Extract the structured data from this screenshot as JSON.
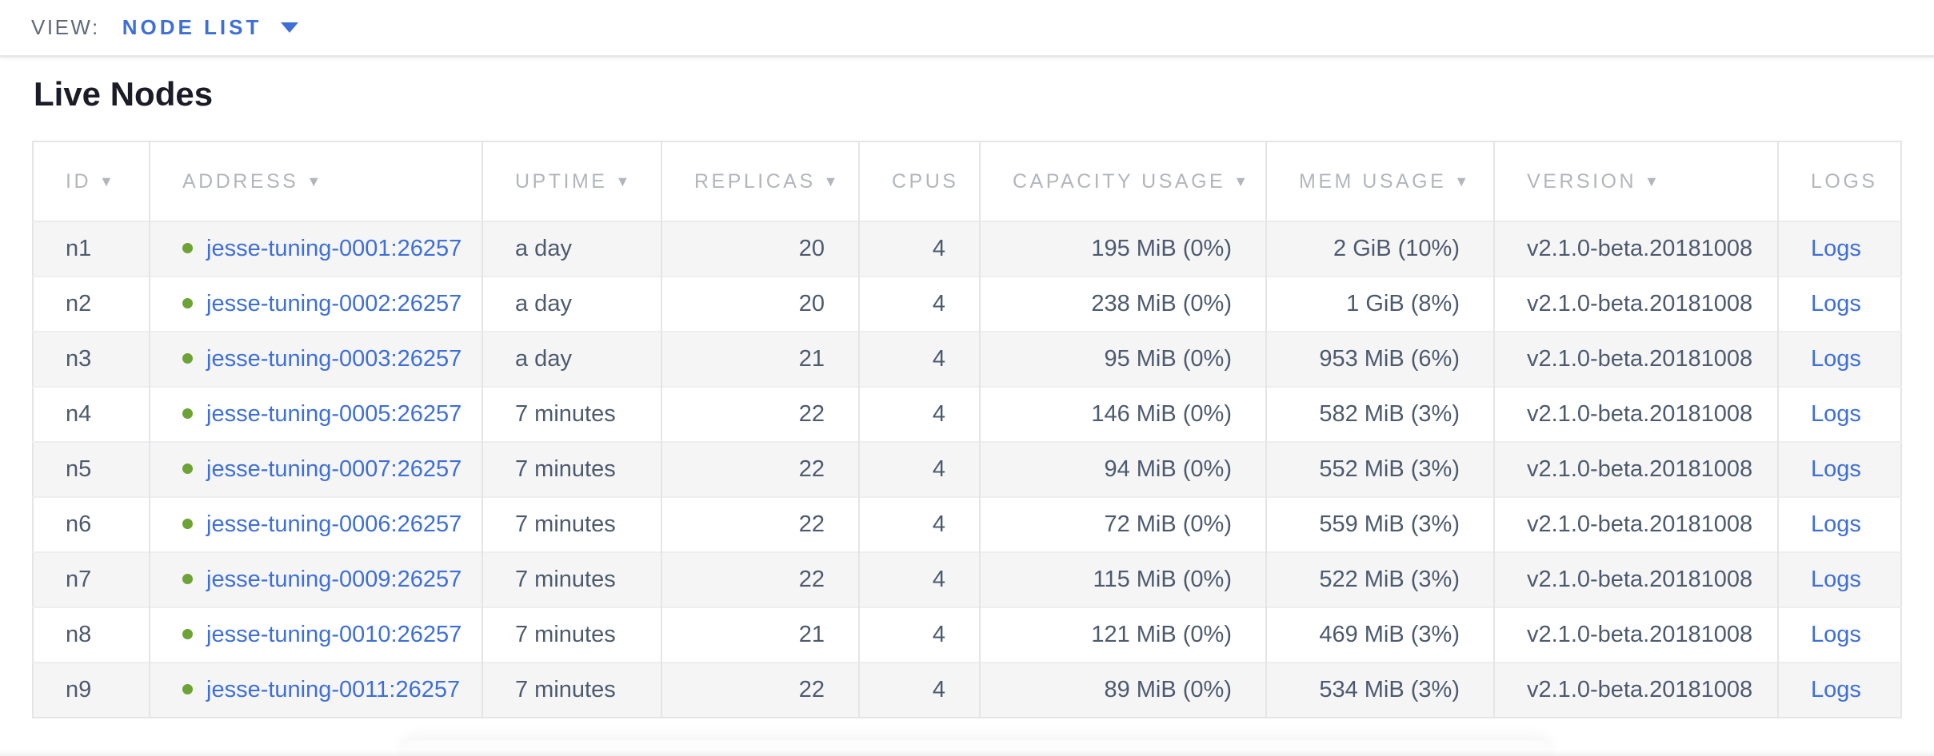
{
  "topbar": {
    "view_label": "VIEW:",
    "view_value": "NODE LIST"
  },
  "page": {
    "title": "Live Nodes"
  },
  "table": {
    "sort_indicator": "▼",
    "columns": [
      {
        "key": "id",
        "label": "ID",
        "sortable": true
      },
      {
        "key": "address",
        "label": "ADDRESS",
        "sortable": true
      },
      {
        "key": "uptime",
        "label": "UPTIME",
        "sortable": true
      },
      {
        "key": "replicas",
        "label": "REPLICAS",
        "sortable": true
      },
      {
        "key": "cpus",
        "label": "CPUS",
        "sortable": false
      },
      {
        "key": "capacity",
        "label": "CAPACITY USAGE",
        "sortable": true
      },
      {
        "key": "mem",
        "label": "MEM USAGE",
        "sortable": true
      },
      {
        "key": "version",
        "label": "VERSION",
        "sortable": true
      },
      {
        "key": "logs",
        "label": "LOGS",
        "sortable": false
      }
    ],
    "rows": [
      {
        "id": "n1",
        "address": "jesse-tuning-0001:26257",
        "status": "live",
        "uptime": "a day",
        "replicas": "20",
        "cpus": "4",
        "capacity": "195 MiB (0%)",
        "mem": "2 GiB (10%)",
        "version": "v2.1.0-beta.20181008",
        "logs": "Logs"
      },
      {
        "id": "n2",
        "address": "jesse-tuning-0002:26257",
        "status": "live",
        "uptime": "a day",
        "replicas": "20",
        "cpus": "4",
        "capacity": "238 MiB (0%)",
        "mem": "1 GiB (8%)",
        "version": "v2.1.0-beta.20181008",
        "logs": "Logs"
      },
      {
        "id": "n3",
        "address": "jesse-tuning-0003:26257",
        "status": "live",
        "uptime": "a day",
        "replicas": "21",
        "cpus": "4",
        "capacity": "95 MiB (0%)",
        "mem": "953 MiB (6%)",
        "version": "v2.1.0-beta.20181008",
        "logs": "Logs"
      },
      {
        "id": "n4",
        "address": "jesse-tuning-0005:26257",
        "status": "live",
        "uptime": "7 minutes",
        "replicas": "22",
        "cpus": "4",
        "capacity": "146 MiB (0%)",
        "mem": "582 MiB (3%)",
        "version": "v2.1.0-beta.20181008",
        "logs": "Logs"
      },
      {
        "id": "n5",
        "address": "jesse-tuning-0007:26257",
        "status": "live",
        "uptime": "7 minutes",
        "replicas": "22",
        "cpus": "4",
        "capacity": "94 MiB (0%)",
        "mem": "552 MiB (3%)",
        "version": "v2.1.0-beta.20181008",
        "logs": "Logs"
      },
      {
        "id": "n6",
        "address": "jesse-tuning-0006:26257",
        "status": "live",
        "uptime": "7 minutes",
        "replicas": "22",
        "cpus": "4",
        "capacity": "72 MiB (0%)",
        "mem": "559 MiB (3%)",
        "version": "v2.1.0-beta.20181008",
        "logs": "Logs"
      },
      {
        "id": "n7",
        "address": "jesse-tuning-0009:26257",
        "status": "live",
        "uptime": "7 minutes",
        "replicas": "22",
        "cpus": "4",
        "capacity": "115 MiB (0%)",
        "mem": "522 MiB (3%)",
        "version": "v2.1.0-beta.20181008",
        "logs": "Logs"
      },
      {
        "id": "n8",
        "address": "jesse-tuning-0010:26257",
        "status": "live",
        "uptime": "7 minutes",
        "replicas": "21",
        "cpus": "4",
        "capacity": "121 MiB (0%)",
        "mem": "469 MiB (3%)",
        "version": "v2.1.0-beta.20181008",
        "logs": "Logs"
      },
      {
        "id": "n9",
        "address": "jesse-tuning-0011:26257",
        "status": "live",
        "uptime": "7 minutes",
        "replicas": "22",
        "cpus": "4",
        "capacity": "89 MiB (0%)",
        "mem": "534 MiB (3%)",
        "version": "v2.1.0-beta.20181008",
        "logs": "Logs"
      }
    ]
  },
  "colors": {
    "accent_blue": "#3e6fd8",
    "live_dot_green": "#6da234",
    "header_gray": "#b2b6bc",
    "cell_text": "#4d5a6e",
    "heading_text": "#1a1d27",
    "row_stripe": "#f5f5f6",
    "table_border": "#e4e5e7"
  }
}
